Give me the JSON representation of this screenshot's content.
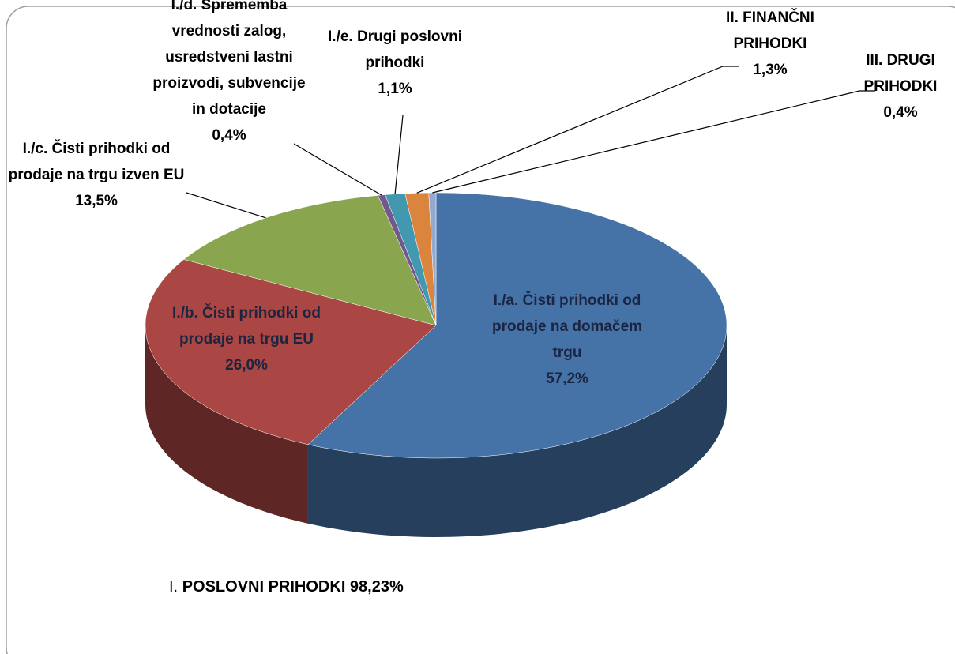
{
  "chart_data": {
    "type": "pie",
    "categories": [
      "I./a. Čisti prihodki od prodaje na domačem trgu",
      "I./b. Čisti prihodki od prodaje na trgu EU",
      "I./c. Čisti prihodki od prodaje na trgu izven EU",
      "I./d. Sprememba vrednosti zalog, usredstveni lastni proizvodi, subvencije in dotacije",
      "I./e. Drugi poslovni prihodki",
      "II. FINANČNI PRIHODKI",
      "III. DRUGI PRIHODKI"
    ],
    "values": [
      57.2,
      26.0,
      13.5,
      0.4,
      1.1,
      1.3,
      0.4
    ],
    "value_labels": [
      "57,2%",
      "26,0%",
      "13,5%",
      "0,4%",
      "1,1%",
      "1,3%",
      "0,4%"
    ],
    "colors": [
      "#4572a7",
      "#aa4643",
      "#89a54e",
      "#71588f",
      "#4198af",
      "#db843d",
      "#93a9cf"
    ],
    "annotation": {
      "prefix": "I.",
      "text": "POSLOVNI PRIHODKI 98,23%"
    }
  }
}
